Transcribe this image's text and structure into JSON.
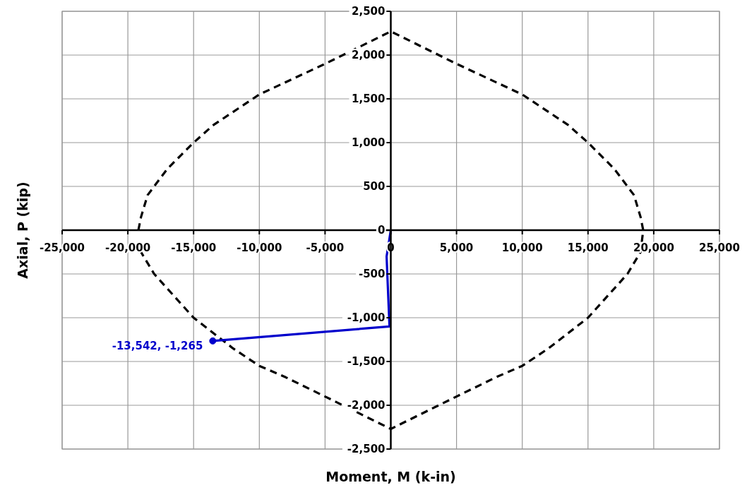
{
  "chart_data": {
    "type": "line",
    "xlabel": "Moment, M (k-in)",
    "ylabel": "Axial, P (kip)",
    "xlim": [
      -25000,
      25000
    ],
    "ylim": [
      -2500,
      2500
    ],
    "xticks": [
      {
        "value": -25000,
        "label": "-25,000"
      },
      {
        "value": -20000,
        "label": "-20,000"
      },
      {
        "value": -15000,
        "label": "-15,000"
      },
      {
        "value": -10000,
        "label": "-10,000"
      },
      {
        "value": -5000,
        "label": "-5,000"
      },
      0,
      {
        "value": 5000,
        "label": "5,000"
      },
      {
        "value": 10000,
        "label": "10,000"
      },
      {
        "value": 15000,
        "label": "15,000"
      },
      {
        "value": 20000,
        "label": "20,000"
      },
      {
        "value": 25000,
        "label": "25,000"
      }
    ],
    "yticks": [
      {
        "value": -2500,
        "label": "-2,500"
      },
      {
        "value": -2000,
        "label": "-2,000"
      },
      {
        "value": -1500,
        "label": "-1,500"
      },
      {
        "value": -1000,
        "label": "-1,000"
      },
      -500,
      0,
      500,
      {
        "value": 1000,
        "label": "1,000"
      },
      {
        "value": 1500,
        "label": "1,500"
      },
      {
        "value": 2000,
        "label": "2,000"
      },
      {
        "value": 2500,
        "label": "2,500"
      }
    ],
    "grid": true,
    "legend": false,
    "series": [
      {
        "color": "#000000",
        "line_style": "dashed",
        "marker": "none",
        "x": [
          -19200,
          -19000,
          -18500,
          -17000,
          -15000,
          -13500,
          -10000,
          -5000,
          0,
          5000,
          10000,
          13500,
          15000,
          17000,
          18500,
          19000,
          19200,
          19000,
          18000,
          15000,
          12000,
          10000,
          8000,
          5000,
          0,
          -5000,
          -8000,
          -10000,
          -12000,
          -15000,
          -18000,
          -19000
        ],
        "values": [
          0,
          150,
          400,
          700,
          1000,
          1200,
          1550,
          1900,
          2270,
          1900,
          1550,
          1200,
          1000,
          700,
          400,
          150,
          0,
          -250,
          -500,
          -1000,
          -1350,
          -1550,
          -1680,
          -1900,
          -2270,
          -1900,
          -1680,
          -1550,
          -1350,
          -1000,
          -500,
          -250
        ]
      },
      {
        "color": "#0000cc",
        "line_style": "solid",
        "marker": "none",
        "x": [
          0,
          -320,
          -100,
          -13542
        ],
        "values": [
          0,
          -300,
          -1100,
          -1265
        ]
      }
    ],
    "annotations": [
      {
        "text": "-13,542, -1,265",
        "x": -13542,
        "y": -1265
      }
    ]
  }
}
